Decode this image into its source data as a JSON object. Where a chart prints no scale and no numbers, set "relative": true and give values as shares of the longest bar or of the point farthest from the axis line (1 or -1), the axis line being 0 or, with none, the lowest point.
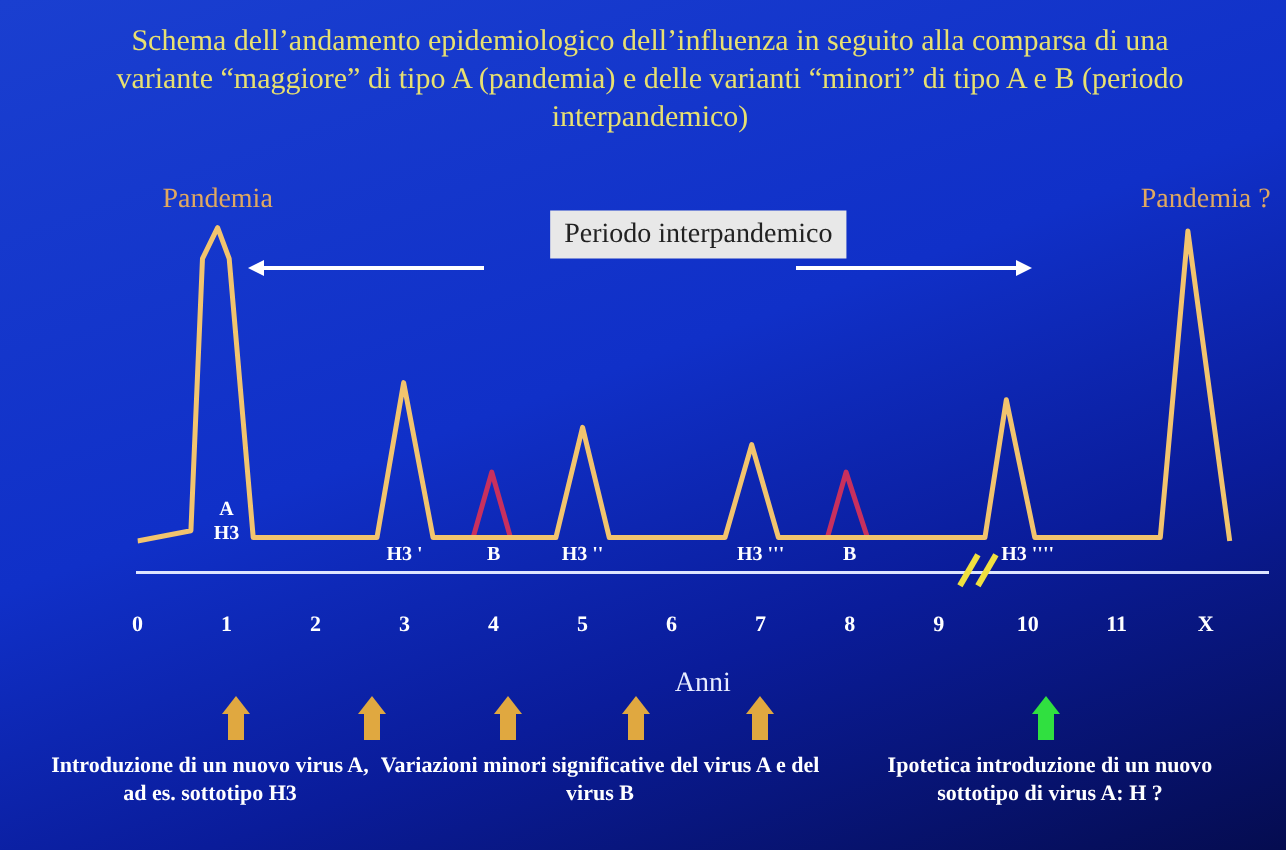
{
  "chart_data": {
    "type": "line",
    "relative": true,
    "title": "Schema dell’andamento epidemiologico dell’influenza in seguito alla comparsa di una variante “maggiore” di tipo A (pandemia) e delle varianti “minori” di tipo A e B (periodo interpandemico)",
    "xlabel": "Anni",
    "xlim": [
      0,
      12.7
    ],
    "xticks": [
      0,
      1,
      2,
      3,
      4,
      5,
      6,
      7,
      8,
      9,
      10,
      11,
      {
        "value": 12,
        "label": "X"
      }
    ],
    "series": [
      {
        "color": "#f2c46e",
        "x": [
          0,
          0.6,
          0.73,
          0.9,
          1.03,
          1.3,
          2.69,
          2.99,
          3.32,
          4.7,
          5.0,
          5.3,
          6.6,
          6.9,
          7.2,
          9.52,
          9.76,
          10.08,
          11.49,
          11.8,
          12.27
        ],
        "values": [
          0.09,
          0.12,
          0.91,
          1,
          0.91,
          0.1,
          0.1,
          0.55,
          0.1,
          0.1,
          0.42,
          0.1,
          0.1,
          0.37,
          0.1,
          0.1,
          0.5,
          0.1,
          0.1,
          0.99,
          0.09
        ]
      },
      {
        "color": "#c8305e",
        "x": [
          3.77,
          3.98,
          4.19,
          6,
          7.75,
          7.96,
          8.2
        ],
        "values": [
          0.1,
          0.29,
          0.1,
          null,
          0.1,
          0.29,
          0.1
        ]
      }
    ],
    "marker": "none",
    "grid": false,
    "legend": false,
    "annotations": [
      "Pandemia",
      "Pandemia ?",
      "Periodo interpandemico",
      "A",
      "H3",
      "H3 '",
      "B",
      "H3 ''",
      "H3 '''",
      "B",
      "H3 ''''",
      "Introduzione di un nuovo virus A, ad es. sottotipo H3",
      "Variazioni minori significative del virus A e del virus B",
      "Ipotetica introduzione di un nuovo sottotipo di virus A: H ?"
    ]
  }
}
